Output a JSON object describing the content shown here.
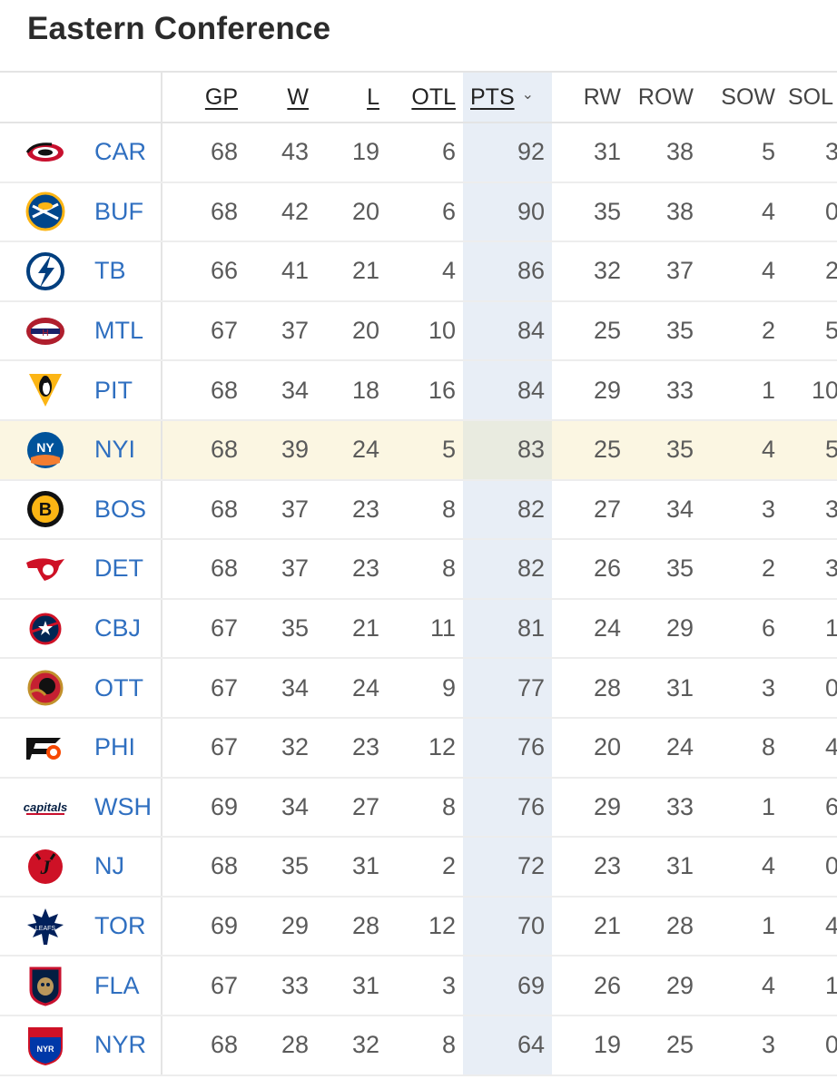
{
  "header": {
    "title": "Eastern Conference"
  },
  "columns": [
    {
      "key": "gp",
      "label": "GP",
      "sortable": true
    },
    {
      "key": "w",
      "label": "W",
      "sortable": true
    },
    {
      "key": "l",
      "label": "L",
      "sortable": true
    },
    {
      "key": "otl",
      "label": "OTL",
      "sortable": true
    },
    {
      "key": "pts",
      "label": "PTS",
      "sortable": true,
      "sorted": "desc"
    },
    {
      "key": "rw",
      "label": "RW",
      "sortable": false
    },
    {
      "key": "row",
      "label": "ROW",
      "sortable": false
    },
    {
      "key": "sow",
      "label": "SOW",
      "sortable": false
    },
    {
      "key": "sol",
      "label": "SOL",
      "sortable": false
    }
  ],
  "colors": {
    "team_link": "#2f6fc0",
    "sorted_column_bg": "#e8eef6",
    "highlight_row_bg": "#fbf6e2"
  },
  "teams": [
    {
      "abbr": "CAR",
      "icon": "hurricanes-logo-icon",
      "gp": "68",
      "w": "43",
      "l": "19",
      "otl": "6",
      "pts": "92",
      "rw": "31",
      "row": "38",
      "sow": "5",
      "sol": "3"
    },
    {
      "abbr": "BUF",
      "icon": "sabres-logo-icon",
      "gp": "68",
      "w": "42",
      "l": "20",
      "otl": "6",
      "pts": "90",
      "rw": "35",
      "row": "38",
      "sow": "4",
      "sol": "0"
    },
    {
      "abbr": "TB",
      "icon": "lightning-logo-icon",
      "gp": "66",
      "w": "41",
      "l": "21",
      "otl": "4",
      "pts": "86",
      "rw": "32",
      "row": "37",
      "sow": "4",
      "sol": "2"
    },
    {
      "abbr": "MTL",
      "icon": "canadiens-logo-icon",
      "gp": "67",
      "w": "37",
      "l": "20",
      "otl": "10",
      "pts": "84",
      "rw": "25",
      "row": "35",
      "sow": "2",
      "sol": "5"
    },
    {
      "abbr": "PIT",
      "icon": "penguins-logo-icon",
      "gp": "68",
      "w": "34",
      "l": "18",
      "otl": "16",
      "pts": "84",
      "rw": "29",
      "row": "33",
      "sow": "1",
      "sol": "10"
    },
    {
      "abbr": "NYI",
      "icon": "islanders-logo-icon",
      "highlight": true,
      "gp": "68",
      "w": "39",
      "l": "24",
      "otl": "5",
      "pts": "83",
      "rw": "25",
      "row": "35",
      "sow": "4",
      "sol": "5"
    },
    {
      "abbr": "BOS",
      "icon": "bruins-logo-icon",
      "gp": "68",
      "w": "37",
      "l": "23",
      "otl": "8",
      "pts": "82",
      "rw": "27",
      "row": "34",
      "sow": "3",
      "sol": "3"
    },
    {
      "abbr": "DET",
      "icon": "red-wings-logo-icon",
      "gp": "68",
      "w": "37",
      "l": "23",
      "otl": "8",
      "pts": "82",
      "rw": "26",
      "row": "35",
      "sow": "2",
      "sol": "3"
    },
    {
      "abbr": "CBJ",
      "icon": "blue-jackets-logo-icon",
      "gp": "67",
      "w": "35",
      "l": "21",
      "otl": "11",
      "pts": "81",
      "rw": "24",
      "row": "29",
      "sow": "6",
      "sol": "1"
    },
    {
      "abbr": "OTT",
      "icon": "senators-logo-icon",
      "gp": "67",
      "w": "34",
      "l": "24",
      "otl": "9",
      "pts": "77",
      "rw": "28",
      "row": "31",
      "sow": "3",
      "sol": "0"
    },
    {
      "abbr": "PHI",
      "icon": "flyers-logo-icon",
      "gp": "67",
      "w": "32",
      "l": "23",
      "otl": "12",
      "pts": "76",
      "rw": "20",
      "row": "24",
      "sow": "8",
      "sol": "4"
    },
    {
      "abbr": "WSH",
      "icon": "capitals-logo-icon",
      "gp": "69",
      "w": "34",
      "l": "27",
      "otl": "8",
      "pts": "76",
      "rw": "29",
      "row": "33",
      "sow": "1",
      "sol": "6"
    },
    {
      "abbr": "NJ",
      "icon": "devils-logo-icon",
      "gp": "68",
      "w": "35",
      "l": "31",
      "otl": "2",
      "pts": "72",
      "rw": "23",
      "row": "31",
      "sow": "4",
      "sol": "0"
    },
    {
      "abbr": "TOR",
      "icon": "maple-leafs-logo-icon",
      "gp": "69",
      "w": "29",
      "l": "28",
      "otl": "12",
      "pts": "70",
      "rw": "21",
      "row": "28",
      "sow": "1",
      "sol": "4"
    },
    {
      "abbr": "FLA",
      "icon": "panthers-logo-icon",
      "gp": "67",
      "w": "33",
      "l": "31",
      "otl": "3",
      "pts": "69",
      "rw": "26",
      "row": "29",
      "sow": "4",
      "sol": "1"
    },
    {
      "abbr": "NYR",
      "icon": "rangers-logo-icon",
      "gp": "68",
      "w": "28",
      "l": "32",
      "otl": "8",
      "pts": "64",
      "rw": "19",
      "row": "25",
      "sow": "3",
      "sol": "0"
    }
  ]
}
